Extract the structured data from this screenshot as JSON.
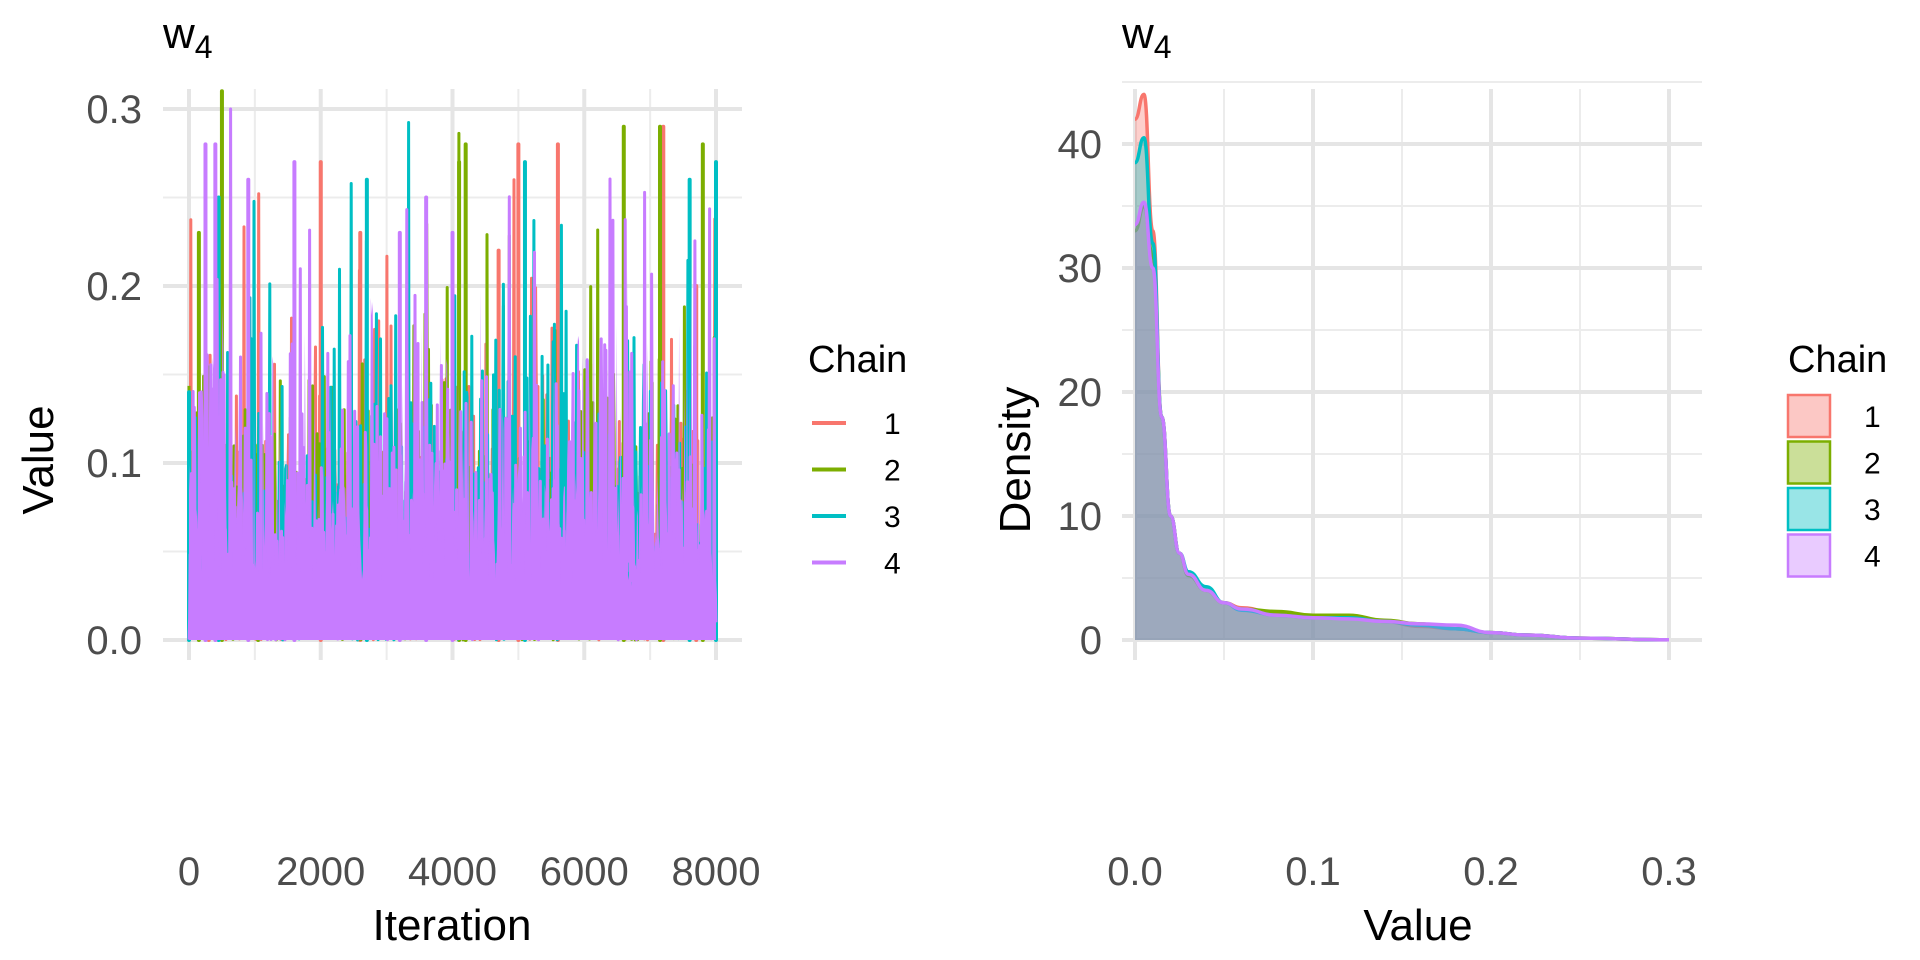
{
  "chart_data": [
    {
      "type": "line",
      "title": "w",
      "title_subscript": "4",
      "xlabel": "Iteration",
      "ylabel": "Value",
      "xlim": [
        0,
        8000
      ],
      "ylim": [
        0,
        0.3
      ],
      "xticks": [
        0,
        2000,
        4000,
        6000,
        8000
      ],
      "xtick_labels": [
        "0",
        "2000",
        "4000",
        "6000",
        "8000"
      ],
      "yticks": [
        0,
        0.1,
        0.2,
        0.3
      ],
      "ytick_labels": [
        "0.0",
        "0.1",
        "0.2",
        "0.3"
      ],
      "grid": true,
      "legend": {
        "title": "Chain",
        "position": "right",
        "entries": [
          "1",
          "2",
          "3",
          "4"
        ]
      },
      "series": [
        {
          "name": "1",
          "color": "#F8766D",
          "peaks": [
            [
              300,
              0.11
            ],
            [
              2000,
              0.27
            ],
            [
              2600,
              0.23
            ],
            [
              4700,
              0.22
            ],
            [
              5000,
              0.28
            ],
            [
              5600,
              0.28
            ],
            [
              7200,
              0.29
            ],
            [
              7700,
              0.2
            ]
          ]
        },
        {
          "name": "2",
          "color": "#7CAE00",
          "peaks": [
            [
              150,
              0.23
            ],
            [
              500,
              0.31
            ],
            [
              1050,
              0.11
            ],
            [
              4200,
              0.28
            ],
            [
              4100,
              0.27
            ],
            [
              6600,
              0.29
            ],
            [
              7150,
              0.29
            ],
            [
              7800,
              0.28
            ]
          ]
        },
        {
          "name": "3",
          "color": "#00BFC4",
          "peaks": [
            [
              0,
              0.14
            ],
            [
              450,
              0.25
            ],
            [
              2700,
              0.26
            ],
            [
              5100,
              0.27
            ],
            [
              7600,
              0.26
            ],
            [
              8000,
              0.27
            ]
          ]
        },
        {
          "name": "4",
          "color": "#C77CFF",
          "peaks": [
            [
              250,
              0.28
            ],
            [
              400,
              0.28
            ],
            [
              900,
              0.26
            ],
            [
              1600,
              0.27
            ],
            [
              3200,
              0.23
            ],
            [
              3600,
              0.25
            ],
            [
              4000,
              0.23
            ]
          ]
        }
      ],
      "note": "Trace plot of 8000 iterations; values mostly in 0.0–0.2 range with spikes up to ~0.3"
    },
    {
      "type": "area",
      "title": "w",
      "title_subscript": "4",
      "xlabel": "Value",
      "ylabel": "Density",
      "xlim": [
        0,
        0.3
      ],
      "ylim": [
        0,
        45
      ],
      "xticks": [
        0,
        0.1,
        0.2,
        0.3
      ],
      "xtick_labels": [
        "0.0",
        "0.1",
        "0.2",
        "0.3"
      ],
      "yticks": [
        0,
        10,
        20,
        30,
        40
      ],
      "ytick_labels": [
        "0",
        "10",
        "20",
        "30",
        "40"
      ],
      "grid": true,
      "legend": {
        "title": "Chain",
        "position": "right",
        "entries": [
          "1",
          "2",
          "3",
          "4"
        ]
      },
      "x": [
        0,
        0.005,
        0.01,
        0.015,
        0.02,
        0.025,
        0.03,
        0.04,
        0.05,
        0.06,
        0.08,
        0.1,
        0.12,
        0.14,
        0.16,
        0.18,
        0.2,
        0.22,
        0.25,
        0.3
      ],
      "series": [
        {
          "name": "1",
          "color": "#F8766D",
          "fill": "#F8766D",
          "values": [
            42,
            44,
            33,
            18,
            10,
            7,
            5.3,
            4,
            3,
            2.6,
            2.1,
            1.9,
            1.8,
            1.5,
            1.1,
            0.9,
            0.6,
            0.4,
            0.15,
            0.02
          ]
        },
        {
          "name": "2",
          "color": "#7CAE00",
          "fill": "#7CAE00",
          "values": [
            33,
            35,
            31,
            18,
            10,
            7,
            5.2,
            4,
            3,
            2.5,
            2.3,
            2.0,
            2.0,
            1.6,
            1.3,
            0.9,
            0.6,
            0.4,
            0.15,
            0.02
          ]
        },
        {
          "name": "3",
          "color": "#00BFC4",
          "fill": "#00BFC4",
          "values": [
            38.5,
            40.5,
            32,
            18,
            10,
            7,
            5.5,
            4.3,
            3,
            2.4,
            2.0,
            1.8,
            1.8,
            1.5,
            1.2,
            0.9,
            0.6,
            0.4,
            0.15,
            0.02
          ]
        },
        {
          "name": "4",
          "color": "#C77CFF",
          "fill": "#C77CFF",
          "values": [
            33.5,
            35.3,
            30,
            18,
            10,
            7,
            5.3,
            4,
            3,
            2.5,
            2.0,
            1.8,
            1.7,
            1.5,
            1.3,
            1.2,
            0.6,
            0.4,
            0.15,
            0.02
          ]
        }
      ]
    }
  ]
}
